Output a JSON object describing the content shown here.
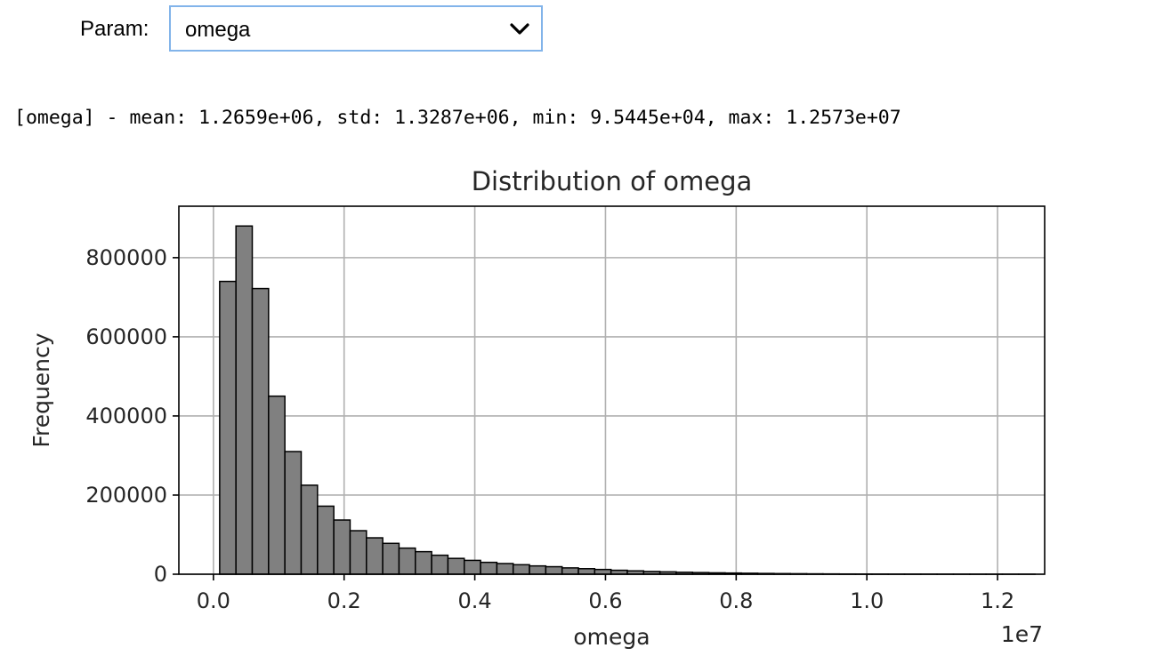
{
  "widget": {
    "label": "Param:",
    "selected": "omega"
  },
  "stats_text": "[omega] - mean: 1.2659e+06, std: 1.3287e+06, min: 9.5445e+04, max: 1.2573e+07",
  "chart_data": {
    "type": "bar",
    "title": "Distribution of omega",
    "xlabel": "omega",
    "ylabel": "Frequency",
    "x_offset_label": "1e7",
    "xlim": [
      -0.0529,
      1.2721
    ],
    "ylim": [
      0,
      930000
    ],
    "x_min": 0.0095445,
    "x_max": 1.2573,
    "xticks": [
      0.0,
      0.2,
      0.4,
      0.6,
      0.8,
      1.0,
      1.2
    ],
    "xtick_labels": [
      "0.0",
      "0.2",
      "0.4",
      "0.6",
      "0.8",
      "1.0",
      "1.2"
    ],
    "yticks": [
      0,
      200000,
      400000,
      600000,
      800000
    ],
    "ytick_labels": [
      "0",
      "200000",
      "400000",
      "600000",
      "800000"
    ],
    "grid": true,
    "bar_color": "#808080",
    "edge_color": "#000000",
    "values": [
      740000,
      880000,
      722000,
      450000,
      310000,
      225000,
      172000,
      137000,
      110000,
      92000,
      78000,
      66000,
      57000,
      48000,
      40000,
      35000,
      30000,
      27000,
      24000,
      21000,
      19000,
      16000,
      14000,
      12000,
      10000,
      8500,
      7000,
      6000,
      5000,
      4200,
      3500,
      3000,
      2500,
      2000,
      1600,
      1300,
      1000,
      800,
      600,
      500,
      400,
      300,
      250,
      200,
      150,
      120,
      100,
      80,
      60,
      40
    ]
  }
}
